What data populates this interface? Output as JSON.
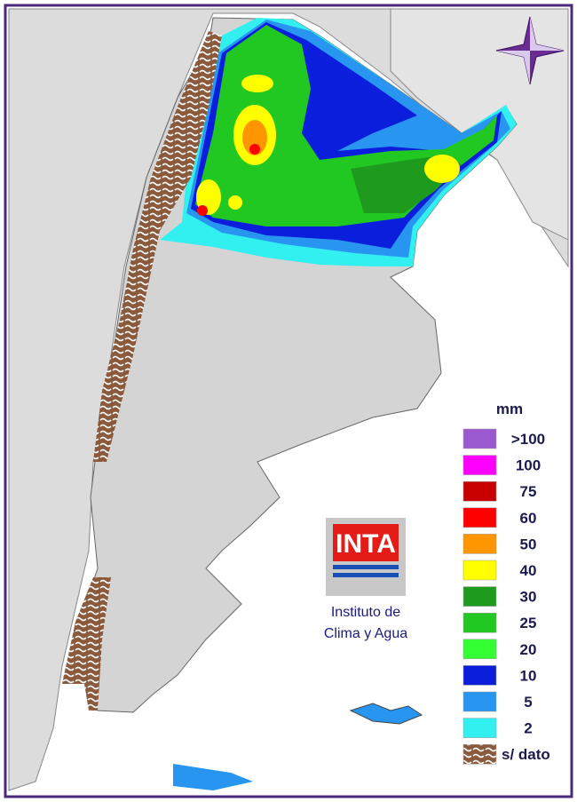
{
  "legend": {
    "title": "mm",
    "entries": [
      {
        "label": ">100",
        "color": "#9b59d0"
      },
      {
        "label": "100",
        "color": "#ff00ff"
      },
      {
        "label": "75",
        "color": "#c80000"
      },
      {
        "label": "60",
        "color": "#ff0000"
      },
      {
        "label": "50",
        "color": "#ff9600"
      },
      {
        "label": "40",
        "color": "#ffff00"
      },
      {
        "label": "30",
        "color": "#1e9a1e"
      },
      {
        "label": "25",
        "color": "#22c822"
      },
      {
        "label": "20",
        "color": "#33ff33"
      },
      {
        "label": "10",
        "color": "#0a1edc"
      },
      {
        "label": "5",
        "color": "#2896f0"
      },
      {
        "label": "2",
        "color": "#33f0f0"
      },
      {
        "label": "s/ dato",
        "color": "#8b5a3c"
      }
    ]
  },
  "logo": {
    "text": "INTA",
    "caption": [
      "Instituto de",
      "Clima y Agua"
    ]
  }
}
